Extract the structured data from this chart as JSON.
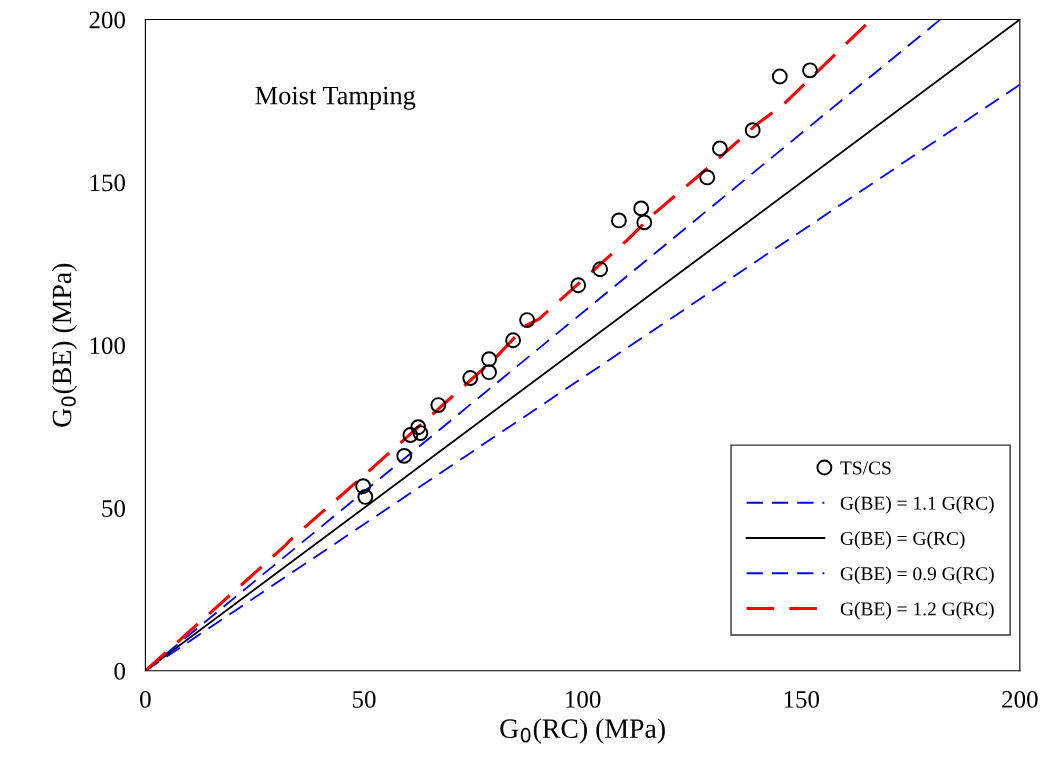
{
  "chart_data": {
    "type": "scatter",
    "xlabel": "G$_{0}$(RC) (MPa)",
    "ylabel": "G$_{0}$(BE) (MPa)",
    "xlim": [
      0,
      200
    ],
    "ylim": [
      0,
      200
    ],
    "xticks": [
      0,
      50,
      100,
      150,
      200
    ],
    "yticks": [
      0,
      50,
      100,
      150,
      200
    ],
    "grid": false,
    "legend": "bottom right",
    "annotations": [
      "Moist Tamping"
    ],
    "series": [
      {
        "name": "TS/CS",
        "marker": "circle",
        "color": "#000000",
        "x": [
          49.8,
          50.3,
          59.2,
          60.6,
          62.4,
          62.9,
          67.0,
          74.3,
          78.6,
          78.6,
          84.1,
          87.3,
          99.0,
          104.0,
          108.3,
          113.4,
          114.1,
          128.5,
          131.4,
          138.9,
          145.1,
          152.0
        ],
        "values": [
          56.7,
          53.4,
          66.0,
          72.4,
          74.8,
          73.0,
          81.6,
          89.9,
          95.7,
          91.7,
          101.5,
          107.7,
          118.4,
          123.3,
          138.3,
          142.0,
          137.7,
          151.5,
          160.4,
          166.0,
          182.5,
          184.4
        ]
      },
      {
        "name": "G(BE) = 1.1 G(RC)",
        "type": "line",
        "line_style": "dashed",
        "marker": "none",
        "color": "#0000ff",
        "x": [
          0,
          181.8
        ],
        "values": [
          0,
          200
        ]
      },
      {
        "name": "G(BE) = G(RC)",
        "type": "line",
        "line_style": "solid",
        "marker": "none",
        "color": "#000000",
        "x": [
          0,
          200
        ],
        "values": [
          0,
          200
        ]
      },
      {
        "name": "G(BE) = 0.9 G(RC)",
        "type": "line",
        "line_style": "dashed",
        "marker": "none",
        "color": "#0000ff",
        "x": [
          0,
          200
        ],
        "values": [
          0,
          180
        ]
      },
      {
        "name": "G(BE) = 1.2 G(RC)",
        "type": "line",
        "line_style": "dashed",
        "marker": "none",
        "color": "#ff0000",
        "x": [
          0,
          10,
          20,
          32,
          33,
          50,
          60,
          70,
          80,
          87,
          90,
          100,
          110,
          116,
          130,
          140,
          146,
          166
        ],
        "values": [
          0,
          12,
          24,
          38.5,
          40,
          60,
          72,
          84,
          96,
          106,
          108,
          120,
          132,
          140,
          156,
          168,
          174,
          200
        ]
      }
    ]
  }
}
